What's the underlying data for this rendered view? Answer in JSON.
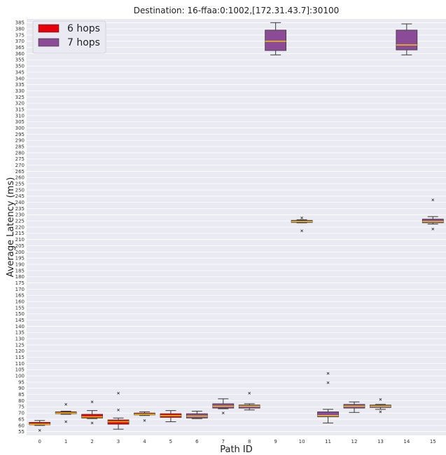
{
  "chart_data": {
    "type": "box",
    "title": "Destination: 16-ffaa:0:1002,[172.31.43.7]:30100",
    "xlabel": "Path ID",
    "ylabel": "Average Latency (ms)",
    "ylim": [
      52,
      388
    ],
    "ytick_step": 5,
    "ytick_min": 55,
    "ytick_max": 385,
    "grid": true,
    "legend_position": "top-left",
    "legend": [
      {
        "label": "6 hops",
        "color": "#e8000b"
      },
      {
        "label": "7 hops",
        "color": "#8c4b96"
      }
    ],
    "median_color": "#f1c40f",
    "categories": [
      "0",
      "1",
      "2",
      "3",
      "4",
      "5",
      "6",
      "7",
      "8",
      "9",
      "10",
      "11",
      "12",
      "13",
      "14",
      "15"
    ],
    "boxes": [
      {
        "path_id": "0",
        "hops": "6 hops",
        "whisker_low": 60,
        "q1": 60.5,
        "median": 61,
        "q3": 62.5,
        "whisker_high": 64,
        "outliers": [
          56
        ]
      },
      {
        "path_id": "1",
        "hops": "6 hops",
        "whisker_low": 69,
        "q1": 69.5,
        "median": 70,
        "q3": 71,
        "whisker_high": 71.5,
        "outliers": [
          77,
          63
        ]
      },
      {
        "path_id": "2",
        "hops": "6 hops",
        "whisker_low": 65.5,
        "q1": 66,
        "median": 67,
        "q3": 69,
        "whisker_high": 72,
        "outliers": [
          79,
          62
        ]
      },
      {
        "path_id": "3",
        "hops": "6 hops",
        "whisker_low": 57,
        "q1": 61,
        "median": 63,
        "q3": 64.5,
        "whisker_high": 66,
        "outliers": [
          86,
          72.5
        ]
      },
      {
        "path_id": "4",
        "hops": "6 hops",
        "whisker_low": 68,
        "q1": 68.5,
        "median": 69,
        "q3": 70,
        "whisker_high": 71,
        "outliers": [
          64
        ]
      },
      {
        "path_id": "5",
        "hops": "6 hops",
        "whisker_low": 63,
        "q1": 66.5,
        "median": 68,
        "q3": 69.5,
        "whisker_high": 72,
        "outliers": []
      },
      {
        "path_id": "6",
        "hops": "7 hops",
        "whisker_low": 65.5,
        "q1": 66,
        "median": 67.5,
        "q3": 69.5,
        "whisker_high": 71.5,
        "outliers": []
      },
      {
        "path_id": "7",
        "hops": "7 hops",
        "whisker_low": 73.5,
        "q1": 74,
        "median": 75.5,
        "q3": 77.5,
        "whisker_high": 81.5,
        "outliers": [
          70
        ]
      },
      {
        "path_id": "8",
        "hops": "7 hops",
        "whisker_low": 72.5,
        "q1": 74,
        "median": 75.5,
        "q3": 76.5,
        "whisker_high": 77.5,
        "outliers": [
          86
        ]
      },
      {
        "path_id": "9",
        "hops": "7 hops",
        "whisker_low": 359,
        "q1": 362.5,
        "median": 370,
        "q3": 379,
        "whisker_high": 385,
        "outliers": []
      },
      {
        "path_id": "10",
        "hops": "7 hops",
        "whisker_low": 223.5,
        "q1": 223.8,
        "median": 224.5,
        "q3": 225.5,
        "whisker_high": 226,
        "outliers": [
          227.5,
          217
        ]
      },
      {
        "path_id": "11",
        "hops": "7 hops",
        "whisker_low": 62,
        "q1": 67,
        "median": 68,
        "q3": 71,
        "whisker_high": 73,
        "outliers": [
          102,
          94.5
        ]
      },
      {
        "path_id": "12",
        "hops": "7 hops",
        "whisker_low": 70.5,
        "q1": 74,
        "median": 75.5,
        "q3": 77,
        "whisker_high": 79,
        "outliers": []
      },
      {
        "path_id": "13",
        "hops": "7 hops",
        "whisker_low": 73,
        "q1": 74.5,
        "median": 75.5,
        "q3": 76.5,
        "whisker_high": 77,
        "outliers": [
          81,
          71
        ]
      },
      {
        "path_id": "14",
        "hops": "7 hops",
        "whisker_low": 359,
        "q1": 363,
        "median": 367,
        "q3": 379,
        "whisker_high": 384,
        "outliers": []
      },
      {
        "path_id": "15",
        "hops": "7 hops",
        "whisker_low": 222.5,
        "q1": 223.5,
        "median": 224.5,
        "q3": 226.5,
        "whisker_high": 228.5,
        "outliers": [
          242,
          218.5
        ]
      }
    ]
  }
}
